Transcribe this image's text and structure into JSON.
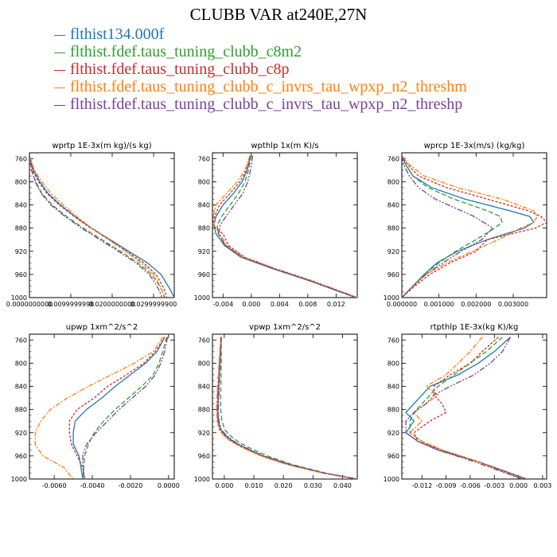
{
  "page_title": "CLUBB VAR at240E,27N",
  "legend": [
    {
      "label": "flthist134.000f",
      "color": "#1f77b4"
    },
    {
      "label": "flthist.fdef.taus_tuning_clubb_c8m2",
      "color": "#2ca02c"
    },
    {
      "label": "flthist.fdef.taus_tuning_clubb_c8p",
      "color": "#d62728"
    },
    {
      "label": "flthist.fdef.taus_tuning_clubb_c_invrs_tau_wpxp_n2_threshm",
      "color": "#ff7f0e"
    },
    {
      "label": "flthist.fdef.taus_tuning_clubb_c_invrs_tau_wpxp_n2_threshp",
      "color": "#7b3fa0"
    }
  ],
  "chart_data": [
    {
      "type": "line",
      "title": "wprtp  1E-3x(m kg)/(s kg)",
      "xlim": [
        0.0,
        0.035
      ],
      "ylim": [
        1000,
        750
      ],
      "xticks": [
        0.0,
        0.01,
        0.02,
        0.03
      ],
      "xtick_labels": [
        "0.0000000000",
        "0.0099999998",
        "0.0200000000",
        "0.0299999900"
      ],
      "yticks": [
        760,
        800,
        840,
        880,
        920,
        960,
        1000
      ],
      "y": [
        755,
        780,
        800,
        820,
        840,
        860,
        880,
        900,
        920,
        940,
        960,
        980,
        990,
        1000
      ],
      "series": [
        {
          "values": [
            0.0,
            0.001,
            0.0025,
            0.0045,
            0.0075,
            0.011,
            0.015,
            0.0195,
            0.024,
            0.0285,
            0.0318,
            0.0335,
            0.0343,
            0.035
          ]
        },
        {
          "values": [
            0.0,
            0.0006,
            0.0015,
            0.003,
            0.0055,
            0.009,
            0.013,
            0.0175,
            0.022,
            0.0262,
            0.0295,
            0.0315,
            0.0322,
            0.0327
          ]
        },
        {
          "values": [
            0.0,
            0.0008,
            0.0022,
            0.0042,
            0.0072,
            0.0108,
            0.0148,
            0.0192,
            0.0235,
            0.0276,
            0.0306,
            0.0322,
            0.0328,
            0.0332
          ]
        },
        {
          "values": [
            0.0,
            0.0012,
            0.003,
            0.0052,
            0.0082,
            0.0115,
            0.015,
            0.0192,
            0.0232,
            0.027,
            0.03,
            0.0316,
            0.0322,
            0.0325
          ]
        },
        {
          "values": [
            0.0,
            0.0005,
            0.0014,
            0.0028,
            0.0052,
            0.0086,
            0.0126,
            0.017,
            0.0215,
            0.0257,
            0.029,
            0.0308,
            0.0315,
            0.032
          ]
        }
      ]
    },
    {
      "type": "line",
      "title": "wpthlp  1x(m K)/s",
      "xlim": [
        -0.0055,
        0.015
      ],
      "ylim": [
        1000,
        750
      ],
      "xticks": [
        -0.004,
        0.0,
        0.004,
        0.008,
        0.012
      ],
      "xtick_labels": [
        "-0.004",
        "0.000",
        "0.004",
        "0.008",
        "0.012"
      ],
      "yticks": [
        760,
        800,
        840,
        880,
        920,
        960,
        1000
      ],
      "y": [
        755,
        780,
        800,
        820,
        840,
        860,
        875,
        890,
        910,
        930,
        950,
        970,
        990,
        1000
      ],
      "series": [
        {
          "values": [
            -0.0001,
            -0.0006,
            -0.0013,
            -0.0025,
            -0.004,
            -0.005,
            -0.0053,
            -0.005,
            -0.0038,
            -0.0015,
            0.003,
            0.008,
            0.0125,
            0.0148
          ]
        },
        {
          "values": [
            0.0,
            -0.0004,
            -0.0009,
            -0.0018,
            -0.003,
            -0.0042,
            -0.0048,
            -0.0047,
            -0.0036,
            -0.0013,
            0.0032,
            0.0082,
            0.0127,
            0.015
          ]
        },
        {
          "values": [
            -0.0001,
            -0.0007,
            -0.0016,
            -0.003,
            -0.0045,
            -0.0052,
            -0.0055,
            -0.004,
            -0.0032,
            -0.001,
            0.0034,
            0.0084,
            0.0128,
            0.015
          ]
        },
        {
          "values": [
            -0.0002,
            -0.0009,
            -0.002,
            -0.0035,
            -0.005,
            -0.0054,
            -0.0052,
            -0.0045,
            -0.0034,
            -0.0011,
            0.0033,
            0.0083,
            0.0128,
            0.015
          ]
        },
        {
          "values": [
            0.0002,
            -0.0001,
            -0.0005,
            -0.0012,
            -0.0024,
            -0.0036,
            -0.0044,
            -0.0046,
            -0.0037,
            -0.0014,
            0.0031,
            0.0081,
            0.0126,
            0.0149
          ]
        }
      ]
    },
    {
      "type": "line",
      "title": "wprcp  1E-3x(m/s) (kg/kg)",
      "xlim": [
        0.0,
        0.0039
      ],
      "ylim": [
        1000,
        750
      ],
      "xticks": [
        0.0,
        0.001,
        0.002,
        0.003
      ],
      "xtick_labels": [
        "0.000000",
        "0.001000",
        "0.002000",
        "0.003000"
      ],
      "yticks": [
        760,
        800,
        840,
        880,
        920,
        960,
        1000
      ],
      "y": [
        755,
        770,
        790,
        810,
        830,
        850,
        860,
        870,
        880,
        900,
        920,
        940,
        960,
        980,
        1000
      ],
      "series": [
        {
          "values": [
            0.0,
            0.0001,
            0.0003,
            0.0008,
            0.0017,
            0.0029,
            0.00345,
            0.00355,
            0.0033,
            0.0023,
            0.0015,
            0.00095,
            0.0006,
            0.0003,
            0.0
          ]
        },
        {
          "values": [
            0.0,
            0.0001,
            0.0003,
            0.0007,
            0.0014,
            0.0023,
            0.00265,
            0.0027,
            0.0025,
            0.002,
            0.00145,
            0.001,
            0.0006,
            0.0003,
            0.0
          ]
        },
        {
          "values": [
            0.0,
            0.00015,
            0.00045,
            0.0012,
            0.0023,
            0.0034,
            0.00375,
            0.0039,
            0.0036,
            0.0023,
            0.002,
            0.0013,
            0.00075,
            0.00035,
            0.0
          ]
        },
        {
          "values": [
            0.0,
            0.0002,
            0.0006,
            0.0015,
            0.0027,
            0.00355,
            0.00365,
            0.00355,
            0.0032,
            0.0026,
            0.0019,
            0.0012,
            0.00065,
            0.0003,
            0.0
          ]
        },
        {
          "values": [
            0.0,
            5e-05,
            0.0002,
            0.00045,
            0.0009,
            0.0016,
            0.00195,
            0.0022,
            0.00245,
            0.00215,
            0.0016,
            0.0011,
            0.00065,
            0.0003,
            0.0
          ]
        }
      ]
    },
    {
      "type": "line",
      "title": "upwp  1xm^2/s^2",
      "xlim": [
        -0.0073,
        0.0003
      ],
      "ylim": [
        1000,
        750
      ],
      "xticks": [
        -0.006,
        -0.004,
        -0.002,
        0.0
      ],
      "xtick_labels": [
        "-0.0060",
        "-0.0040",
        "-0.0020",
        "0.0000"
      ],
      "yticks": [
        760,
        800,
        840,
        880,
        920,
        960,
        1000
      ],
      "y": [
        755,
        780,
        800,
        820,
        840,
        860,
        880,
        900,
        920,
        940,
        960,
        980,
        1000
      ],
      "series": [
        {
          "values": [
            -0.0002,
            -0.0006,
            -0.0012,
            -0.002,
            -0.0028,
            -0.0035,
            -0.0043,
            -0.0049,
            -0.005,
            -0.005,
            -0.0047,
            -0.0046,
            -0.0045
          ]
        },
        {
          "values": [
            -0.0001,
            -0.0003,
            -0.0005,
            -0.0008,
            -0.0014,
            -0.0021,
            -0.0028,
            -0.0034,
            -0.0039,
            -0.0042,
            -0.0044,
            -0.00445,
            -0.0045
          ]
        },
        {
          "values": [
            -0.0002,
            -0.0007,
            -0.0013,
            -0.0022,
            -0.0032,
            -0.0039,
            -0.0048,
            -0.0052,
            -0.0052,
            -0.0051,
            -0.0048,
            -0.0045,
            -0.0044
          ]
        },
        {
          "values": [
            -0.0003,
            -0.0008,
            -0.0018,
            -0.003,
            -0.0042,
            -0.0053,
            -0.0062,
            -0.0067,
            -0.007,
            -0.007,
            -0.0066,
            -0.0055,
            -0.005
          ]
        },
        {
          "values": [
            -5e-05,
            -0.0002,
            -0.0004,
            -0.0007,
            -0.0012,
            -0.0019,
            -0.0026,
            -0.0032,
            -0.0038,
            -0.0043,
            -0.0045,
            -0.0045,
            -0.0044
          ]
        }
      ]
    },
    {
      "type": "line",
      "title": "vpwp  1xm^2/s^2",
      "xlim": [
        -0.004,
        0.045
      ],
      "ylim": [
        1000,
        750
      ],
      "xticks": [
        0.0,
        0.01,
        0.02,
        0.03,
        0.04
      ],
      "xtick_labels": [
        "0.000",
        "0.010",
        "0.020",
        "0.030",
        "0.040"
      ],
      "yticks": [
        760,
        800,
        840,
        880,
        920,
        960,
        1000
      ],
      "y": [
        755,
        800,
        850,
        880,
        900,
        915,
        925,
        935,
        945,
        960,
        975,
        990,
        1000
      ],
      "series": [
        {
          "values": [
            -0.001,
            -0.0015,
            -0.002,
            -0.0022,
            -0.002,
            -0.0012,
            0.0005,
            0.003,
            0.0065,
            0.013,
            0.022,
            0.034,
            0.045
          ]
        },
        {
          "values": [
            -0.001,
            -0.001,
            -0.0012,
            -0.0012,
            -0.0008,
            0.0002,
            0.002,
            0.0045,
            0.008,
            0.0145,
            0.023,
            0.0345,
            0.045
          ]
        },
        {
          "values": [
            -0.001,
            -0.0016,
            -0.0022,
            -0.0024,
            -0.0022,
            -0.0015,
            0.0,
            0.0025,
            0.006,
            0.0125,
            0.0215,
            0.0338,
            0.045
          ]
        },
        {
          "values": [
            -0.0012,
            -0.0018,
            -0.0024,
            -0.0026,
            -0.0024,
            -0.0017,
            -0.0002,
            0.0022,
            0.0058,
            0.0122,
            0.0212,
            0.0335,
            0.045
          ]
        },
        {
          "values": [
            -0.001,
            -0.0014,
            -0.0018,
            -0.002,
            -0.0018,
            -0.001,
            0.0008,
            0.0033,
            0.0068,
            0.0133,
            0.0222,
            0.0341,
            0.045
          ]
        }
      ]
    },
    {
      "type": "line",
      "title": "rtpthlp  1E-3x(kg K)/kg",
      "xlim": [
        -0.0145,
        0.0035
      ],
      "ylim": [
        1000,
        750
      ],
      "xticks": [
        -0.012,
        -0.009,
        -0.006,
        -0.003,
        0.0,
        0.003
      ],
      "xtick_labels": [
        "-0.012",
        "-0.009",
        "-0.006",
        "-0.003",
        "0.000",
        "0.003"
      ],
      "yticks": [
        760,
        800,
        840,
        880,
        920,
        960,
        1000
      ],
      "y": [
        755,
        780,
        800,
        820,
        840,
        855,
        870,
        885,
        900,
        920,
        935,
        950,
        970,
        990,
        1000
      ],
      "series": [
        {
          "values": [
            -0.001,
            -0.003,
            -0.005,
            -0.0075,
            -0.011,
            -0.012,
            -0.013,
            -0.014,
            -0.013,
            -0.014,
            -0.0125,
            -0.01,
            -0.005,
            -0.001,
            0.001
          ]
        },
        {
          "values": [
            -0.002,
            -0.004,
            -0.006,
            -0.008,
            -0.01,
            -0.011,
            -0.012,
            -0.013,
            -0.0135,
            -0.0135,
            -0.012,
            -0.0095,
            -0.005,
            -0.0015,
            0.0005
          ]
        },
        {
          "values": [
            -0.0025,
            -0.0045,
            -0.006,
            -0.0085,
            -0.0105,
            -0.0105,
            -0.0095,
            -0.009,
            -0.011,
            -0.013,
            -0.0125,
            -0.0095,
            -0.005,
            -0.001,
            0.001
          ]
        },
        {
          "values": [
            -0.0045,
            -0.006,
            -0.0075,
            -0.009,
            -0.0115,
            -0.01,
            -0.0115,
            -0.013,
            -0.012,
            -0.0135,
            -0.012,
            -0.0095,
            -0.005,
            -0.0015,
            0.0005
          ]
        },
        {
          "values": [
            -0.001,
            -0.002,
            -0.0035,
            -0.0055,
            -0.0085,
            -0.0105,
            -0.0115,
            -0.013,
            -0.014,
            -0.014,
            -0.0125,
            -0.01,
            -0.0055,
            -0.0015,
            0.0005
          ]
        }
      ]
    }
  ]
}
